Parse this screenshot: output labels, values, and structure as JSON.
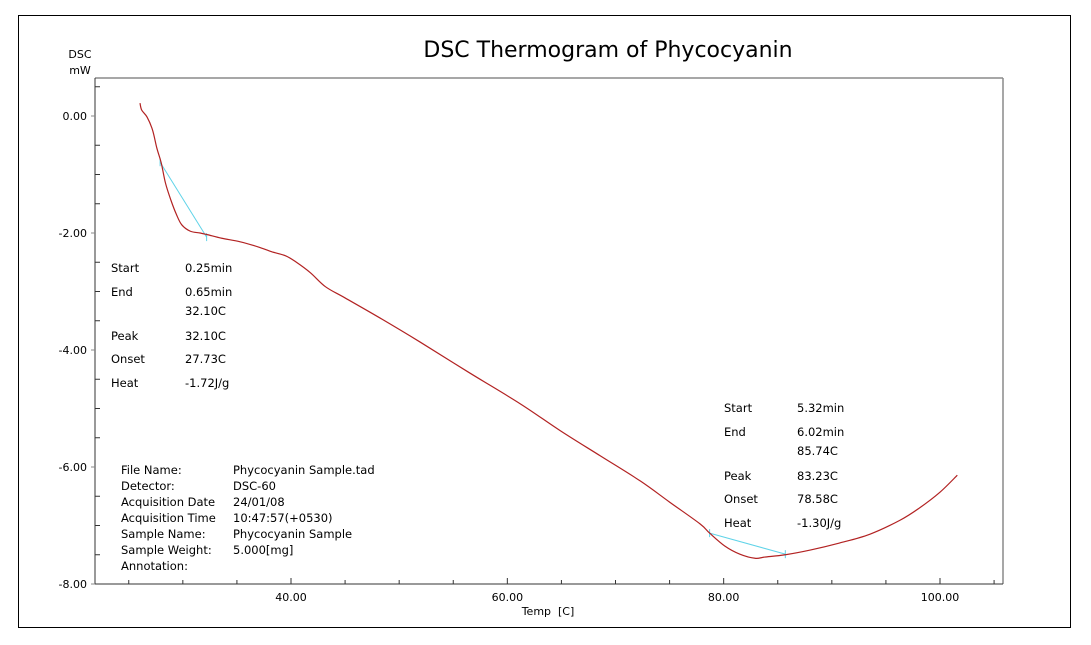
{
  "chart_data": {
    "type": "line",
    "title": "DSC Thermogram of Phycocyanin",
    "xlabel": "Temp  [C]",
    "ylabel": [
      "DSC",
      "mW"
    ],
    "xlim": [
      21.9,
      105.8
    ],
    "ylim": [
      -8.0,
      0.65
    ],
    "x_ticks": [
      40,
      60,
      80,
      100
    ],
    "x_tick_labels": [
      "40.00",
      "60.00",
      "80.00",
      "100.00"
    ],
    "x_minor_step": 5,
    "y_ticks": [
      0,
      -2,
      -4,
      -6,
      -8
    ],
    "y_tick_labels": [
      "0.00",
      "-2.00",
      "-4.00",
      "-6.00",
      "-8.00"
    ],
    "y_minor_step": 0.5,
    "grid": false,
    "series": [
      {
        "name": "DSC",
        "color": "#b22222",
        "x": [
          26.04,
          26.2,
          26.7,
          27.2,
          27.6,
          28.0,
          28.4,
          28.9,
          29.4,
          29.9,
          30.7,
          31.6,
          32.3,
          33.6,
          35.3,
          37.0,
          38.2,
          39.5,
          40.5,
          41.8,
          43.2,
          45.0,
          48.2,
          51.9,
          56.5,
          61.2,
          64.9,
          68.6,
          72.3,
          75.0,
          77.8,
          78.7,
          80.1,
          81.5,
          82.9,
          83.8,
          85.7,
          88.0,
          90.7,
          93.5,
          96.3,
          98.1,
          100.0,
          101.6
        ],
        "y": [
          0.22,
          0.1,
          -0.02,
          -0.24,
          -0.55,
          -0.8,
          -1.15,
          -1.44,
          -1.68,
          -1.86,
          -1.97,
          -2.0,
          -2.03,
          -2.09,
          -2.15,
          -2.24,
          -2.32,
          -2.39,
          -2.5,
          -2.68,
          -2.92,
          -3.11,
          -3.45,
          -3.86,
          -4.39,
          -4.92,
          -5.38,
          -5.81,
          -6.24,
          -6.6,
          -6.97,
          -7.13,
          -7.35,
          -7.49,
          -7.56,
          -7.54,
          -7.5,
          -7.42,
          -7.3,
          -7.15,
          -6.91,
          -6.7,
          -6.43,
          -6.14
        ]
      }
    ],
    "baselines": [
      {
        "name": "baseline-peak-1",
        "color": "#5fd3e8",
        "x": [
          27.9,
          32.2
        ],
        "y": [
          -0.79,
          -2.07
        ]
      },
      {
        "name": "baseline-peak-2",
        "color": "#5fd3e8",
        "x": [
          78.7,
          85.7
        ],
        "y": [
          -7.13,
          -7.49
        ]
      }
    ],
    "annotations": [
      {
        "name": "peak-1-results",
        "rows": [
          {
            "label": "Start",
            "value": "0.25min"
          },
          {
            "label": "End",
            "value": "0.65min"
          },
          {
            "label": "",
            "value": "32.10C"
          },
          {
            "label": "Peak",
            "value": "32.10C"
          },
          {
            "label": "Onset",
            "value": "27.73C"
          },
          {
            "label": "Heat",
            "value": "-1.72J/g"
          }
        ]
      },
      {
        "name": "peak-2-results",
        "rows": [
          {
            "label": "Start",
            "value": "5.32min"
          },
          {
            "label": "End",
            "value": "6.02min"
          },
          {
            "label": "",
            "value": "85.74C"
          },
          {
            "label": "Peak",
            "value": "83.23C"
          },
          {
            "label": "Onset",
            "value": "78.58C"
          },
          {
            "label": "Heat",
            "value": "-1.30J/g"
          }
        ]
      }
    ]
  },
  "file_info": [
    {
      "label": "File Name:",
      "value": "Phycocyanin Sample.tad"
    },
    {
      "label": "Detector:",
      "value": "DSC-60"
    },
    {
      "label": "Acquisition Date",
      "value": "24/01/08"
    },
    {
      "label": "Acquisition Time",
      "value": "10:47:57(+0530)"
    },
    {
      "label": "Sample Name:",
      "value": "Phycocyanin Sample"
    },
    {
      "label": "Sample Weight:",
      "value": "5.000[mg]"
    },
    {
      "label": "Annotation:",
      "value": ""
    }
  ]
}
